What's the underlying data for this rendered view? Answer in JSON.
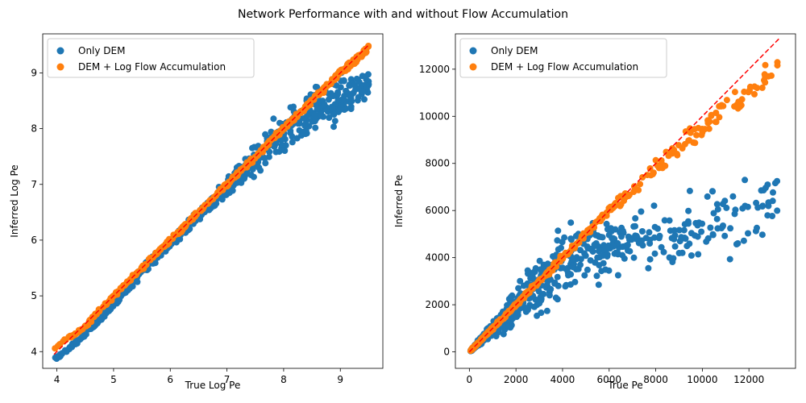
{
  "suptitle": "Network Performance with and without Flow Accumulation",
  "colors": {
    "only_dem": "#1f77b4",
    "dem_flow": "#ff7f0e",
    "identity": "#ff0000"
  },
  "chart_data": [
    {
      "type": "scatter",
      "title": "",
      "xlabel": "True Log Pe",
      "ylabel": "Inferred Log Pe",
      "xlim": [
        3.75,
        9.75
      ],
      "ylim": [
        3.7,
        9.7
      ],
      "xticks": [
        4,
        5,
        6,
        7,
        8,
        9
      ],
      "yticks": [
        4,
        5,
        6,
        7,
        8,
        9
      ],
      "grid": false,
      "legend_position": "upper-left",
      "reference_line": {
        "style": "dashed",
        "from": [
          3.95,
          3.95
        ],
        "to": [
          9.5,
          9.5
        ]
      },
      "series": [
        {
          "name": "Only DEM",
          "trend": [
            [
              3.95,
              3.85
            ],
            [
              4.5,
              4.3
            ],
            [
              5.0,
              4.85
            ],
            [
              5.5,
              5.45
            ],
            [
              6.0,
              5.95
            ],
            [
              6.5,
              6.45
            ],
            [
              7.0,
              6.95
            ],
            [
              7.5,
              7.45
            ],
            [
              8.0,
              7.95
            ],
            [
              8.5,
              8.3
            ],
            [
              9.0,
              8.55
            ],
            [
              9.5,
              8.8
            ]
          ],
          "spread": [
            [
              3.95,
              0.02
            ],
            [
              4.5,
              0.03
            ],
            [
              5.0,
              0.05
            ],
            [
              5.5,
              0.06
            ],
            [
              6.0,
              0.06
            ],
            [
              6.5,
              0.07
            ],
            [
              7.0,
              0.12
            ],
            [
              7.5,
              0.2
            ],
            [
              8.0,
              0.28
            ],
            [
              8.5,
              0.3
            ],
            [
              9.0,
              0.3
            ],
            [
              9.5,
              0.15
            ]
          ]
        },
        {
          "name": "DEM + Log Flow Accumulation",
          "trend": [
            [
              3.95,
              4.05
            ],
            [
              4.5,
              4.45
            ],
            [
              5.0,
              5.0
            ],
            [
              5.5,
              5.5
            ],
            [
              6.0,
              6.0
            ],
            [
              6.5,
              6.5
            ],
            [
              7.0,
              7.0
            ],
            [
              7.5,
              7.5
            ],
            [
              8.0,
              8.0
            ],
            [
              8.5,
              8.5
            ],
            [
              9.0,
              9.0
            ],
            [
              9.5,
              9.45
            ]
          ],
          "spread": [
            [
              3.95,
              0.02
            ],
            [
              5.0,
              0.03
            ],
            [
              7.0,
              0.03
            ],
            [
              9.5,
              0.04
            ]
          ]
        }
      ]
    },
    {
      "type": "scatter",
      "title": "",
      "xlabel": "True Pe",
      "ylabel": "Inferred Pe",
      "xlim": [
        -600,
        14000
      ],
      "ylim": [
        -700,
        13500
      ],
      "xticks": [
        0,
        2000,
        4000,
        6000,
        8000,
        10000,
        12000
      ],
      "yticks": [
        0,
        2000,
        4000,
        6000,
        8000,
        10000,
        12000
      ],
      "grid": false,
      "legend_position": "upper-left",
      "reference_line": {
        "style": "dashed",
        "from": [
          0,
          0
        ],
        "to": [
          13300,
          13300
        ]
      },
      "series": [
        {
          "name": "Only DEM",
          "trend": [
            [
              50,
              45
            ],
            [
              1000,
              950
            ],
            [
              2000,
              1900
            ],
            [
              3000,
              2900
            ],
            [
              4000,
              3700
            ],
            [
              5000,
              4200
            ],
            [
              6000,
              4500
            ],
            [
              7000,
              4700
            ],
            [
              8000,
              4800
            ],
            [
              9000,
              5000
            ],
            [
              10000,
              5300
            ],
            [
              11000,
              5600
            ],
            [
              12000,
              6000
            ],
            [
              13300,
              6700
            ]
          ],
          "spread": [
            [
              50,
              20
            ],
            [
              1000,
              200
            ],
            [
              2000,
              500
            ],
            [
              3000,
              800
            ],
            [
              4000,
              1000
            ],
            [
              5000,
              900
            ],
            [
              6000,
              800
            ],
            [
              8000,
              900
            ],
            [
              10000,
              1000
            ],
            [
              12000,
              900
            ],
            [
              13300,
              600
            ]
          ]
        },
        {
          "name": "DEM + Log Flow Accumulation",
          "trend": [
            [
              50,
              55
            ],
            [
              1000,
              1000
            ],
            [
              2000,
              2000
            ],
            [
              3000,
              3000
            ],
            [
              4000,
              4000
            ],
            [
              5000,
              5000
            ],
            [
              6000,
              6000
            ],
            [
              7000,
              6950
            ],
            [
              8000,
              7850
            ],
            [
              9000,
              8700
            ],
            [
              10000,
              9600
            ],
            [
              11000,
              10300
            ],
            [
              12000,
              11000
            ],
            [
              13300,
              12400
            ]
          ],
          "spread": [
            [
              50,
              20
            ],
            [
              2000,
              60
            ],
            [
              5000,
              120
            ],
            [
              7000,
              220
            ],
            [
              9000,
              300
            ],
            [
              11000,
              350
            ],
            [
              13300,
              400
            ]
          ]
        }
      ]
    }
  ]
}
